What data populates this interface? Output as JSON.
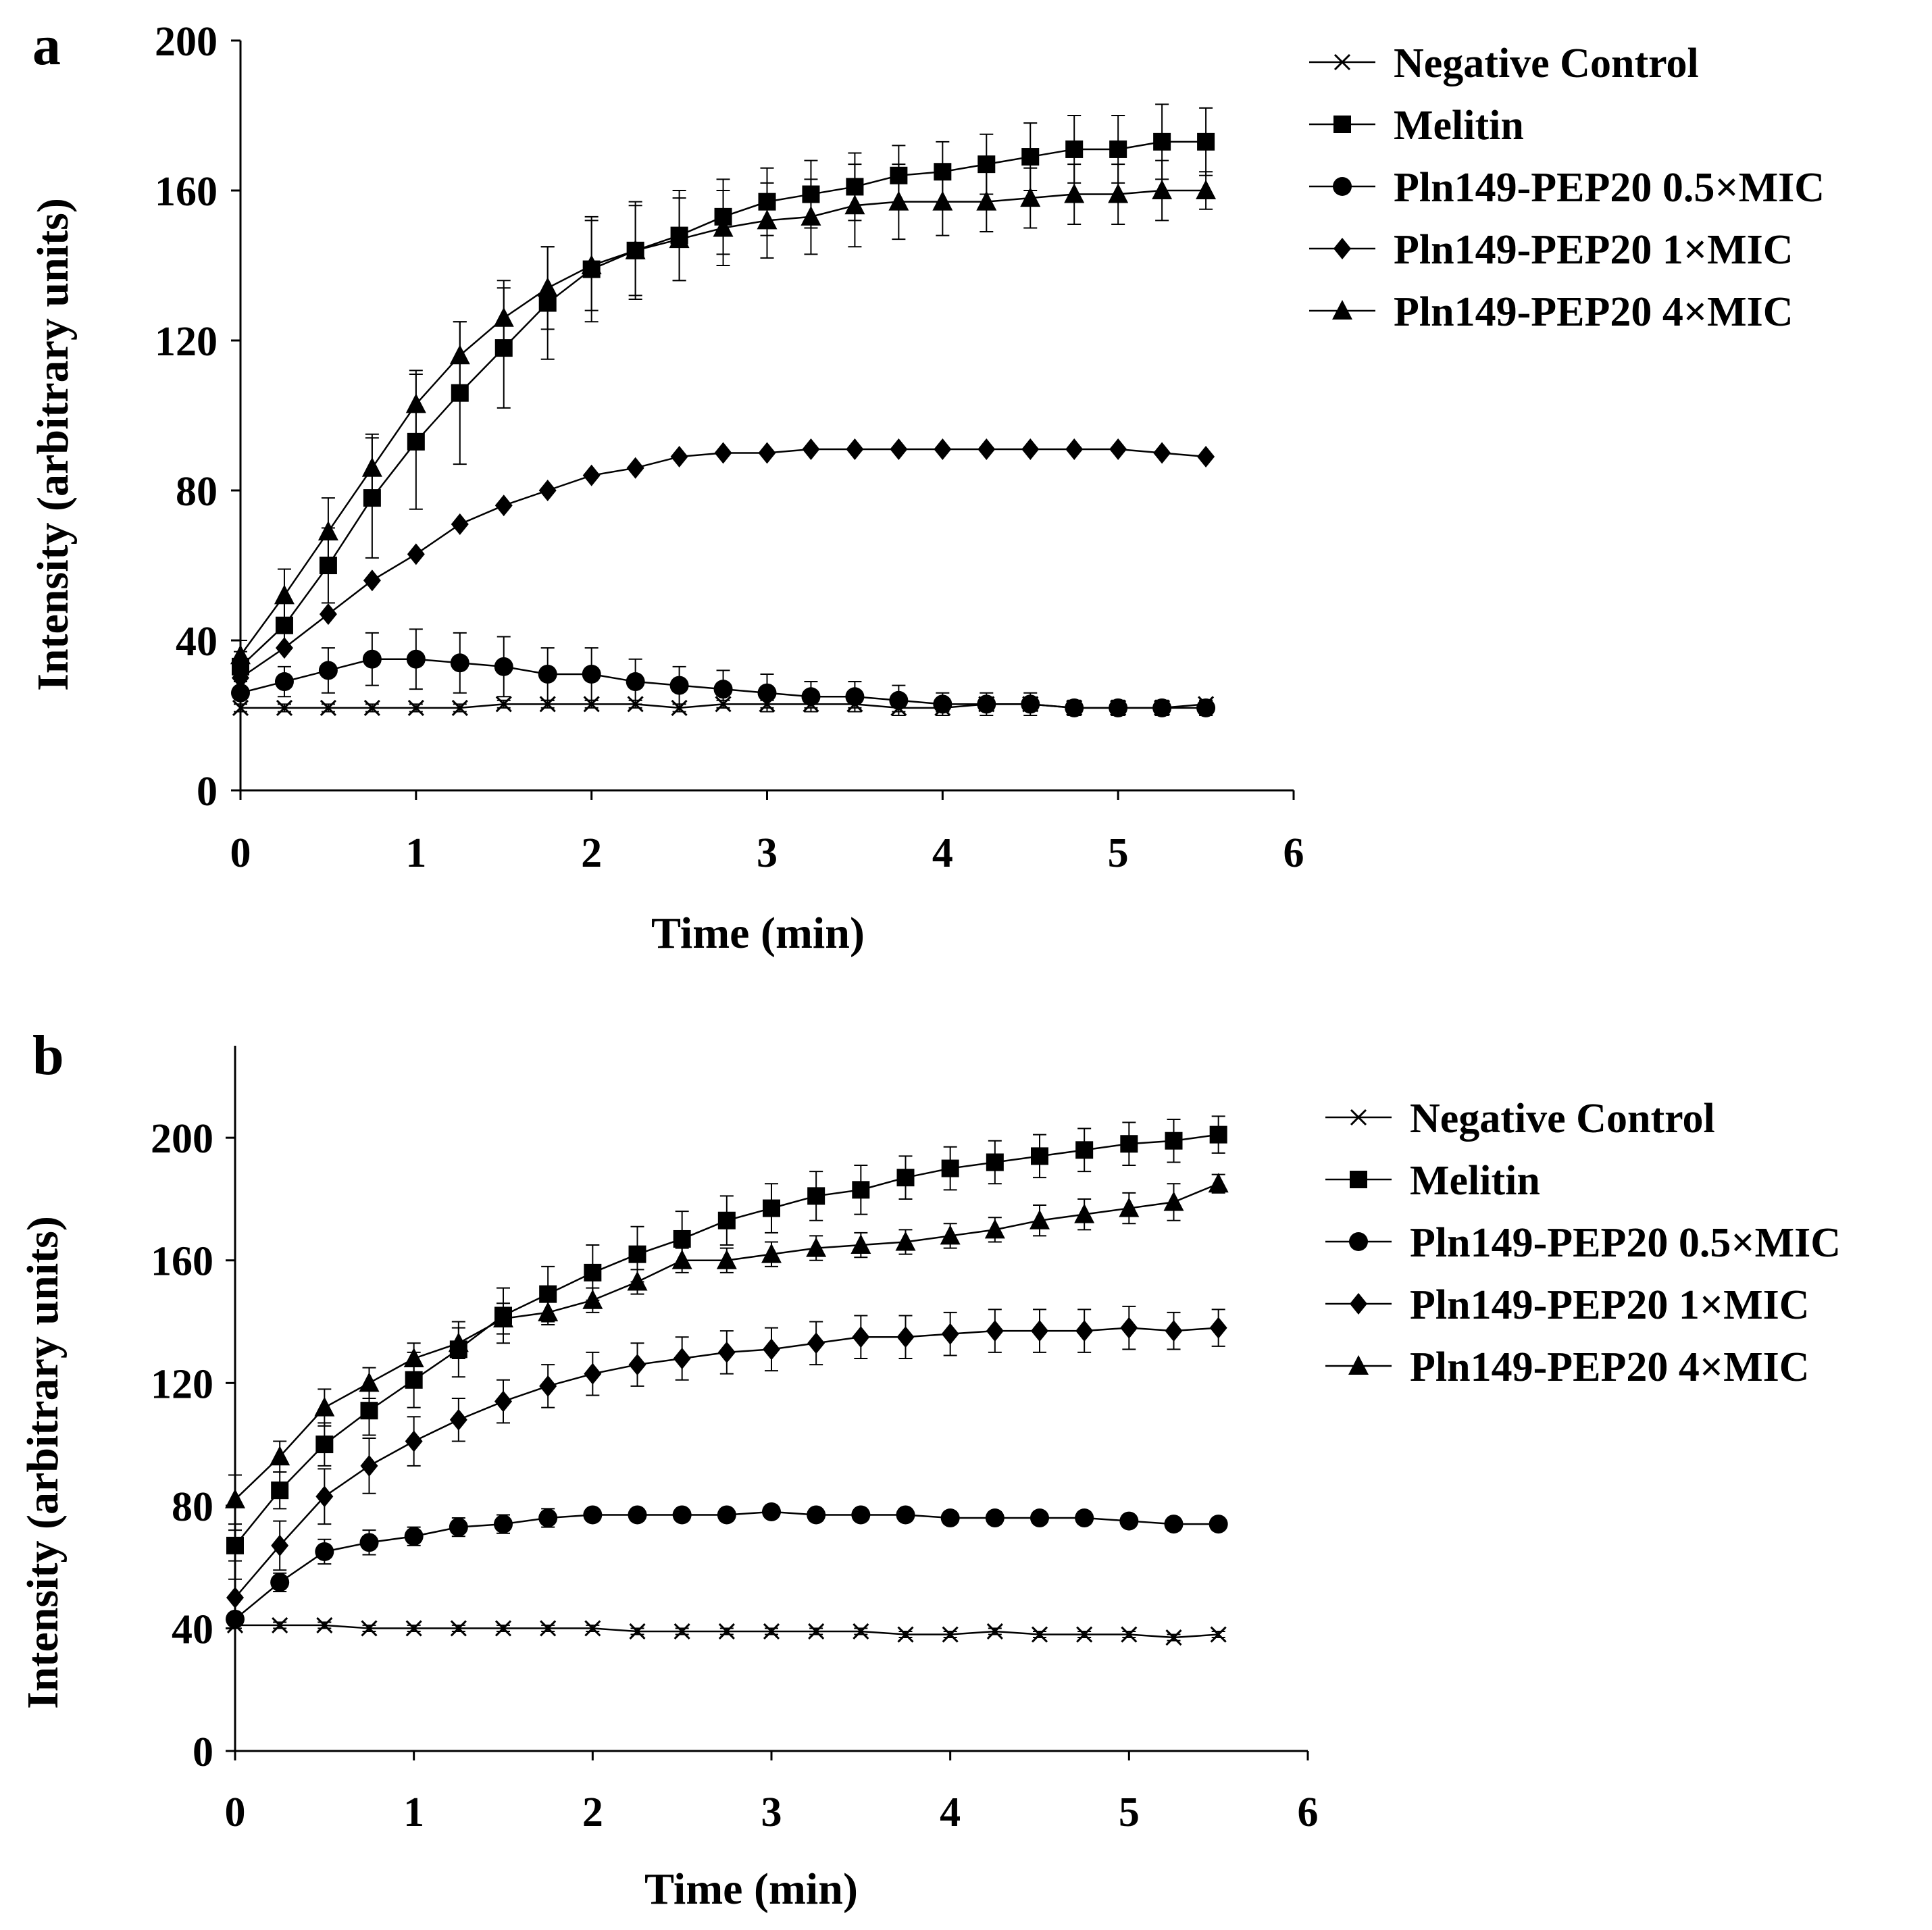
{
  "chart_data": [
    {
      "panel_label": "a",
      "type": "line",
      "xlabel": "Time (min)",
      "ylabel": "Intensity (arbitrary units)",
      "xlim": [
        0,
        6
      ],
      "ylim": [
        0,
        200
      ],
      "xticks": [
        0,
        1,
        2,
        3,
        4,
        5,
        6
      ],
      "yticks": [
        0,
        40,
        80,
        120,
        160,
        200
      ],
      "legend_position": "top-right",
      "x": [
        0,
        0.25,
        0.5,
        0.75,
        1,
        1.25,
        1.5,
        1.75,
        2,
        2.25,
        2.5,
        2.75,
        3,
        3.25,
        3.5,
        3.75,
        4,
        4.25,
        4.5,
        4.75,
        5,
        5.25,
        5.5
      ],
      "series": [
        {
          "name": "Negative Control",
          "marker": "x",
          "values": [
            22,
            22,
            22,
            22,
            22,
            22,
            23,
            23,
            23,
            23,
            22,
            23,
            23,
            23,
            23,
            22,
            22,
            23,
            23,
            22,
            22,
            22,
            23
          ],
          "errors": [
            1,
            1,
            1,
            1,
            1,
            1,
            1,
            1,
            1,
            1,
            1,
            1,
            1,
            1,
            1,
            1,
            1,
            1,
            1,
            1,
            1,
            1,
            1
          ]
        },
        {
          "name": "Melitin",
          "marker": "square",
          "values": [
            33,
            44,
            60,
            78,
            93,
            106,
            118,
            130,
            139,
            144,
            148,
            153,
            157,
            159,
            161,
            164,
            165,
            167,
            169,
            171,
            171,
            173,
            173
          ],
          "errors": [
            4,
            6,
            10,
            16,
            18,
            19,
            16,
            15,
            14,
            13,
            12,
            10,
            9,
            9,
            9,
            8,
            8,
            8,
            9,
            9,
            9,
            10,
            9
          ]
        },
        {
          "name": "Pln149-PEP20 0.5×MIC",
          "marker": "circle",
          "values": [
            26,
            29,
            32,
            35,
            35,
            34,
            33,
            31,
            31,
            29,
            28,
            27,
            26,
            25,
            25,
            24,
            23,
            23,
            23,
            22,
            22,
            22,
            22
          ],
          "errors": [
            3,
            4,
            6,
            7,
            8,
            8,
            8,
            7,
            7,
            6,
            5,
            5,
            5,
            4,
            4,
            4,
            3,
            3,
            3,
            2,
            2,
            2,
            2
          ]
        },
        {
          "name": "Pln149-PEP20 1×MIC",
          "marker": "diamond",
          "values": [
            30,
            38,
            47,
            56,
            63,
            71,
            76,
            80,
            84,
            86,
            89,
            90,
            90,
            91,
            91,
            91,
            91,
            91,
            91,
            91,
            91,
            90,
            89
          ]
        },
        {
          "name": "Pln149-PEP20 4×MIC",
          "marker": "triangle",
          "values": [
            36,
            52,
            69,
            86,
            103,
            116,
            126,
            134,
            140,
            144,
            147,
            150,
            152,
            153,
            156,
            157,
            157,
            157,
            158,
            159,
            159,
            160,
            160
          ],
          "errors": [
            4,
            7,
            9,
            9,
            9,
            9,
            10,
            11,
            12,
            12,
            11,
            10,
            10,
            10,
            11,
            10,
            9,
            8,
            8,
            8,
            8,
            8,
            5
          ]
        }
      ]
    },
    {
      "panel_label": "b",
      "type": "line",
      "xlabel": "Time (min)",
      "ylabel": "Intensity (arbitrary units)",
      "xlim": [
        0,
        6
      ],
      "ylim": [
        0,
        230
      ],
      "xticks": [
        0,
        1,
        2,
        3,
        4,
        5,
        6
      ],
      "yticks": [
        0,
        40,
        80,
        120,
        160,
        200
      ],
      "legend_position": "right",
      "x": [
        0,
        0.25,
        0.5,
        0.75,
        1,
        1.25,
        1.5,
        1.75,
        2,
        2.25,
        2.5,
        2.75,
        3,
        3.25,
        3.5,
        3.75,
        4,
        4.25,
        4.5,
        4.75,
        5,
        5.25,
        5.5
      ],
      "series": [
        {
          "name": "Negative Control",
          "marker": "x",
          "values": [
            41,
            41,
            41,
            40,
            40,
            40,
            40,
            40,
            40,
            39,
            39,
            39,
            39,
            39,
            39,
            38,
            38,
            39,
            38,
            38,
            38,
            37,
            38
          ],
          "errors": [
            1,
            1,
            1,
            1,
            1,
            1,
            1,
            1,
            1,
            1,
            1,
            1,
            1,
            1,
            1,
            1,
            1,
            1,
            1,
            1,
            1,
            1,
            1
          ]
        },
        {
          "name": "Melitin",
          "marker": "square",
          "values": [
            67,
            85,
            100,
            111,
            121,
            131,
            142,
            149,
            156,
            162,
            167,
            173,
            177,
            181,
            183,
            187,
            190,
            192,
            194,
            196,
            198,
            199,
            201
          ],
          "errors": [
            5,
            6,
            7,
            8,
            9,
            9,
            9,
            9,
            9,
            9,
            9,
            8,
            8,
            8,
            8,
            7,
            7,
            7,
            7,
            7,
            7,
            7,
            6
          ]
        },
        {
          "name": "Pln149-PEP20 0.5×MIC",
          "marker": "circle",
          "values": [
            43,
            55,
            65,
            68,
            70,
            73,
            74,
            76,
            77,
            77,
            77,
            77,
            78,
            77,
            77,
            77,
            76,
            76,
            76,
            76,
            75,
            74,
            74
          ],
          "errors": [
            2,
            3,
            4,
            4,
            3,
            3,
            3,
            3,
            2,
            2,
            2,
            2,
            2,
            2,
            2,
            2,
            2,
            2,
            2,
            2,
            2,
            2,
            2
          ]
        },
        {
          "name": "Pln149-PEP20 1×MIC",
          "marker": "diamond",
          "values": [
            50,
            67,
            83,
            93,
            101,
            108,
            114,
            119,
            123,
            126,
            128,
            130,
            131,
            133,
            135,
            135,
            136,
            137,
            137,
            137,
            138,
            137,
            138
          ],
          "errors": [
            6,
            8,
            9,
            9,
            8,
            7,
            7,
            7,
            7,
            7,
            7,
            7,
            7,
            7,
            7,
            7,
            7,
            7,
            7,
            7,
            7,
            6,
            6
          ]
        },
        {
          "name": "Pln149-PEP20 4×MIC",
          "marker": "triangle",
          "values": [
            82,
            96,
            112,
            120,
            128,
            133,
            141,
            143,
            147,
            153,
            160,
            160,
            162,
            164,
            165,
            166,
            168,
            170,
            173,
            175,
            177,
            179,
            185
          ],
          "errors": [
            8,
            5,
            6,
            5,
            5,
            5,
            5,
            4,
            4,
            4,
            4,
            4,
            4,
            4,
            4,
            4,
            4,
            4,
            5,
            5,
            5,
            6,
            3
          ]
        }
      ]
    }
  ]
}
